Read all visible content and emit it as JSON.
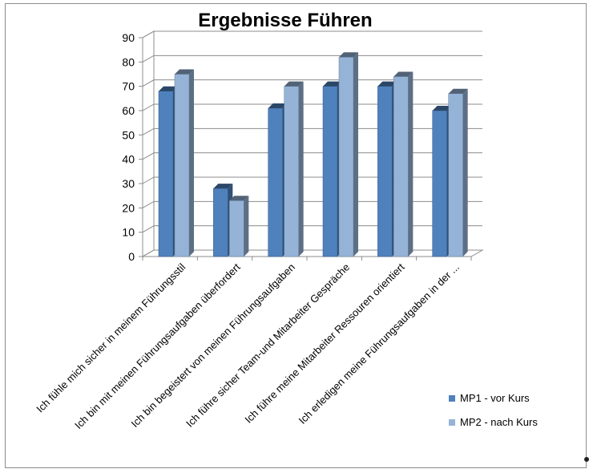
{
  "chart_data": {
    "type": "bar",
    "title": "Ergebnisse Führen",
    "xlabel": "",
    "ylabel": "",
    "ylim": [
      0,
      90
    ],
    "yticks": [
      0,
      10,
      20,
      30,
      40,
      50,
      60,
      70,
      80,
      90
    ],
    "grid": true,
    "legend_position": "bottom-right",
    "categories": [
      "Ich fühle mich sicher in meinem Führungsstil",
      "Ich bin mit meinen Führungsaufgaben überfordert",
      "Ich bin begeistert von meinen Führungsaufgaben",
      "Ich führe sicher Team-und Mitarbeiter Gespräche",
      "Ich führe meine Mitarbeiter Ressouren orientiert",
      "Ich erledigen meine Führungsaufgaben in der ..."
    ],
    "series": [
      {
        "name": "MP1 - vor Kurs",
        "color": "#4f81bd",
        "values": [
          68,
          28,
          61,
          70,
          70,
          60
        ]
      },
      {
        "name": "MP2 - nach Kurs",
        "color": "#95b3d7",
        "values": [
          75,
          23,
          70,
          82,
          74,
          67
        ]
      }
    ]
  }
}
